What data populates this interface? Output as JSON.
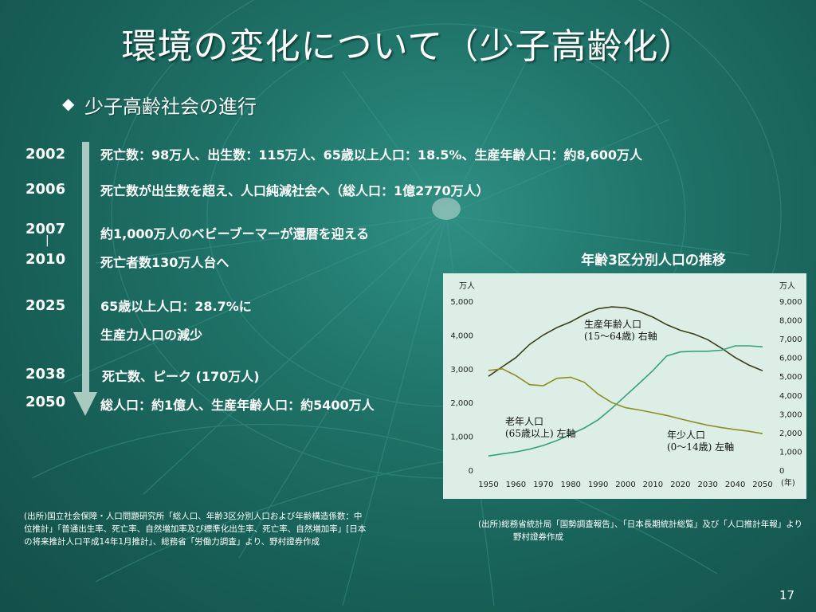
{
  "title": "環境の変化について（少子高齢化）",
  "bullet": {
    "icon": "diamond-bullet-icon",
    "text": "少子高齢社会の進行"
  },
  "timeline": [
    {
      "year": "2002",
      "lines": [
        "死亡数：98万人、出生数：115万人、65歳以上人口：18.5%、生産年齢人口：約8,600万人"
      ]
    },
    {
      "year": "2006",
      "lines": [
        "死亡数が出生数を超え、人口純減社会へ（総人口：1億2770万人）"
      ]
    },
    {
      "year": "2007",
      "lines": [
        "約1,000万人のベビーブーマーが還暦を迎える"
      ]
    },
    {
      "year": "2010",
      "lines": [
        "死亡者数130万人台へ"
      ]
    },
    {
      "year": "2025",
      "lines": [
        "65歳以上人口：28.7%に",
        "生産力人口の減少"
      ]
    },
    {
      "year": "2038",
      "lines": [
        "死亡数、ピーク (170万人)"
      ]
    },
    {
      "year": "2050",
      "lines": [
        "総人口：約1億人、生産年齢人口：約5400万人"
      ]
    }
  ],
  "range_dash": "|",
  "chart_data": {
    "type": "line",
    "title": "年齢3区分別人口の推移",
    "left_unit": "万人",
    "right_unit": "万人",
    "x_unit": "(年)",
    "x": [
      1950,
      1955,
      1960,
      1965,
      1970,
      1975,
      1980,
      1985,
      1990,
      1995,
      2000,
      2005,
      2010,
      2015,
      2020,
      2025,
      2030,
      2035,
      2040,
      2045,
      2050
    ],
    "left_ticks": [
      "0",
      "1,000",
      "2,000",
      "3,000",
      "4,000",
      "5,000"
    ],
    "right_ticks": [
      "0",
      "1,000",
      "2,000",
      "3,000",
      "4,000",
      "5,000",
      "6,000",
      "7,000",
      "8,000",
      "9,000"
    ],
    "x_ticks": [
      "1950",
      "1960",
      "1970",
      "1980",
      "1990",
      "2000",
      "2010",
      "2020",
      "2030",
      "2040",
      "2050"
    ],
    "ylim_left": [
      0,
      5000
    ],
    "ylim_right": [
      0,
      9000
    ],
    "series": [
      {
        "name": "生産年齢人口",
        "label_lines": [
          "生産年齢人口",
          "(15～64歳)  右軸"
        ],
        "axis": "right",
        "color": "#3b3f1a",
        "values": [
          5000,
          5500,
          6000,
          6700,
          7200,
          7600,
          7900,
          8300,
          8600,
          8700,
          8650,
          8450,
          8150,
          7750,
          7450,
          7250,
          6950,
          6500,
          6000,
          5600,
          5300
        ]
      },
      {
        "name": "老年人口",
        "label_lines": [
          "老年人口",
          "(65歳以上)  左軸"
        ],
        "axis": "left",
        "color": "#3aa07c",
        "values": [
          420,
          480,
          540,
          620,
          730,
          880,
          1060,
          1250,
          1490,
          1830,
          2200,
          2570,
          2950,
          3380,
          3500,
          3520,
          3520,
          3550,
          3680,
          3680,
          3650
        ]
      },
      {
        "name": "年少人口",
        "label_lines": [
          "年少人口",
          "(0～14歳)  左軸"
        ],
        "axis": "left",
        "color": "#8e8e22",
        "values": [
          2950,
          3000,
          2800,
          2530,
          2500,
          2720,
          2750,
          2600,
          2250,
          2000,
          1850,
          1780,
          1700,
          1620,
          1520,
          1420,
          1330,
          1260,
          1200,
          1150,
          1080
        ]
      }
    ]
  },
  "source_left": [
    "(出所)国立社会保障・人口問題研究所「総人口、年齢3区分別人口および年齢構造係数：中",
    "位推計」「普通出生率、死亡率、自然増加率及び標準化出生率、死亡率、自然増加率」[日本",
    "の将来推計人口平成14年1月推計」、総務省「労働力調査」より、野村證券作成"
  ],
  "source_right": [
    "(出所)総務省統計局「国勢調査報告」、「日本長期統計総覧」及び「人口推計年報」より",
    "野村證券作成"
  ],
  "page_number": "17"
}
